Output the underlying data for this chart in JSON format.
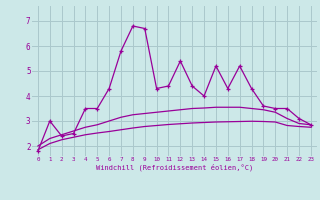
{
  "xlabel": "Windchill (Refroidissement éolien,°C)",
  "bg_color": "#cce8e8",
  "grid_color": "#aac8cc",
  "line_color": "#990099",
  "x_ticks": [
    0,
    1,
    2,
    3,
    4,
    5,
    6,
    7,
    8,
    9,
    10,
    11,
    12,
    13,
    14,
    15,
    16,
    17,
    18,
    19,
    20,
    21,
    22,
    23
  ],
  "y_ticks": [
    2,
    3,
    4,
    5,
    6,
    7
  ],
  "ylim": [
    1.6,
    7.6
  ],
  "xlim": [
    -0.5,
    23.5
  ],
  "line1_x": [
    0,
    1,
    2,
    3,
    4,
    5,
    6,
    7,
    8,
    9,
    10,
    11,
    12,
    13,
    14,
    15,
    16,
    17,
    18,
    19,
    20,
    21,
    22,
    23
  ],
  "line1_y": [
    1.8,
    3.0,
    2.4,
    2.5,
    3.5,
    3.5,
    4.3,
    5.8,
    6.8,
    6.7,
    4.3,
    4.4,
    5.4,
    4.4,
    4.0,
    5.2,
    4.3,
    5.2,
    4.3,
    3.6,
    3.5,
    3.5,
    3.1,
    2.85
  ],
  "line2_x": [
    0,
    1,
    2,
    3,
    4,
    5,
    6,
    7,
    8,
    9,
    10,
    11,
    12,
    13,
    14,
    15,
    16,
    17,
    18,
    19,
    20,
    21,
    22,
    23
  ],
  "line2_y": [
    2.0,
    2.3,
    2.45,
    2.6,
    2.75,
    2.85,
    3.0,
    3.15,
    3.25,
    3.3,
    3.35,
    3.4,
    3.45,
    3.5,
    3.52,
    3.55,
    3.55,
    3.55,
    3.5,
    3.45,
    3.35,
    3.1,
    2.9,
    2.85
  ],
  "line3_x": [
    0,
    1,
    2,
    3,
    4,
    5,
    6,
    7,
    8,
    9,
    10,
    11,
    12,
    13,
    14,
    15,
    16,
    17,
    18,
    19,
    20,
    21,
    22,
    23
  ],
  "line3_y": [
    1.85,
    2.1,
    2.25,
    2.35,
    2.45,
    2.52,
    2.58,
    2.65,
    2.72,
    2.78,
    2.82,
    2.86,
    2.89,
    2.92,
    2.94,
    2.96,
    2.97,
    2.98,
    2.99,
    2.98,
    2.96,
    2.82,
    2.78,
    2.75
  ]
}
